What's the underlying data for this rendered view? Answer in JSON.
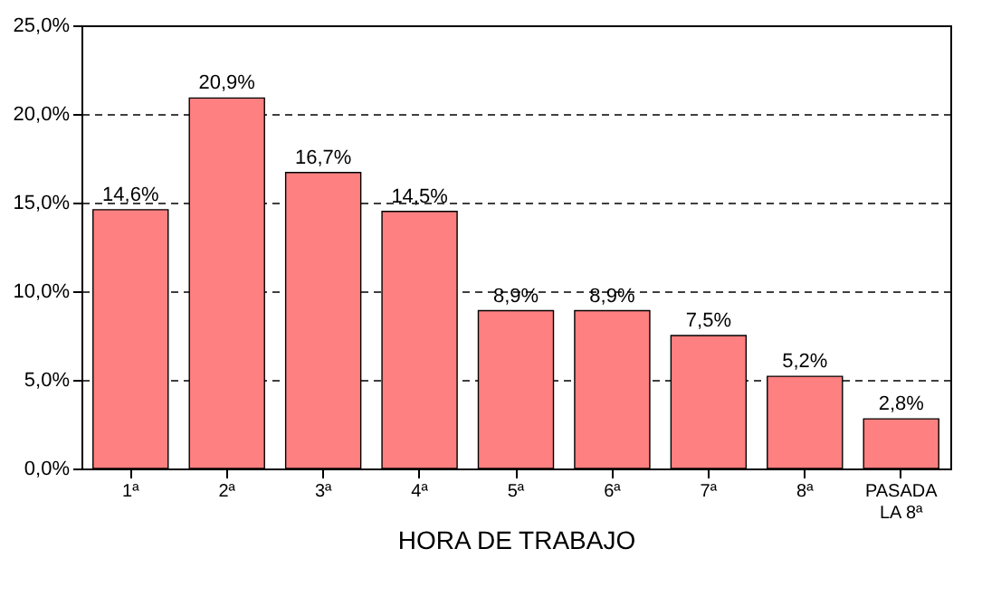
{
  "chart_data": {
    "type": "bar",
    "xlabel": "HORA DE TRABAJO",
    "categories": [
      "1ª",
      "2ª",
      "3ª",
      "4ª",
      "5ª",
      "6ª",
      "7ª",
      "8ª",
      "PASADA LA 8ª"
    ],
    "values": [
      14.6,
      20.9,
      16.7,
      14.5,
      8.9,
      8.9,
      7.5,
      5.2,
      2.8
    ],
    "value_labels": [
      "14,6%",
      "20,9%",
      "16,7%",
      "14,5%",
      "8,9%",
      "8,9%",
      "7,5%",
      "5,2%",
      "2,8%"
    ],
    "color": "#ff8080",
    "ylim": [
      0,
      25
    ],
    "yticks": [
      {
        "value": 0,
        "label": "0,0%"
      },
      {
        "value": 5,
        "label": "5,0%"
      },
      {
        "value": 10,
        "label": "10,0%"
      },
      {
        "value": 15,
        "label": "15,0%"
      },
      {
        "value": 20,
        "label": "20,0%"
      },
      {
        "value": 25,
        "label": "25,0%"
      }
    ],
    "grid": "y",
    "line_style": "dashed"
  }
}
